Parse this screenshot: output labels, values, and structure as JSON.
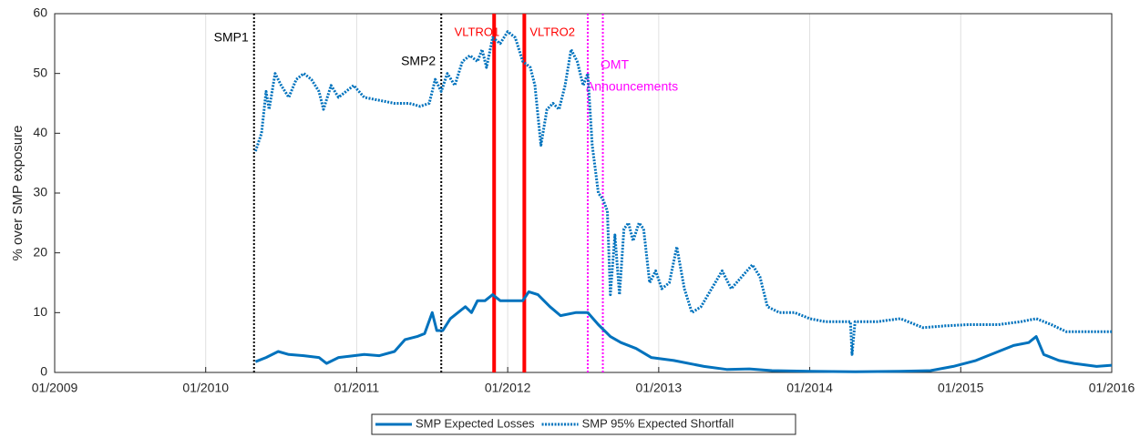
{
  "chart_data": {
    "type": "line",
    "ylabel": "% over SMP exposure",
    "xlim": [
      2009,
      2016
    ],
    "xticks": [
      {
        "value": 2009,
        "label": "01/2009"
      },
      {
        "value": 2010,
        "label": "01/2010"
      },
      {
        "value": 2011,
        "label": "01/2011"
      },
      {
        "value": 2012,
        "label": "01/2012"
      },
      {
        "value": 2013,
        "label": "01/2013"
      },
      {
        "value": 2014,
        "label": "01/2014"
      },
      {
        "value": 2015,
        "label": "01/2015"
      },
      {
        "value": 2016,
        "label": "01/2016"
      }
    ],
    "ylim": [
      0,
      60
    ],
    "yticks": [
      0,
      10,
      20,
      30,
      40,
      50,
      60
    ],
    "grid": true,
    "series": [
      {
        "name": "SMP Expected Losses",
        "color": "#0072bd",
        "style": "solid",
        "x": [
          2010.33,
          2010.4,
          2010.48,
          2010.55,
          2010.65,
          2010.75,
          2010.8,
          2010.88,
          2010.95,
          2011.05,
          2011.15,
          2011.25,
          2011.32,
          2011.4,
          2011.45,
          2011.5,
          2011.53,
          2011.57,
          2011.62,
          2011.67,
          2011.72,
          2011.76,
          2011.8,
          2011.85,
          2011.9,
          2011.95,
          2012.0,
          2012.05,
          2012.1,
          2012.14,
          2012.2,
          2012.28,
          2012.35,
          2012.45,
          2012.53,
          2012.6,
          2012.68,
          2012.75,
          2012.85,
          2012.95,
          2013.1,
          2013.3,
          2013.45,
          2013.6,
          2013.75,
          2014.0,
          2014.3,
          2014.6,
          2014.8,
          2014.95,
          2015.1,
          2015.25,
          2015.35,
          2015.45,
          2015.5,
          2015.55,
          2015.65,
          2015.75,
          2015.9,
          2016.0
        ],
        "values": [
          1.8,
          2.5,
          3.5,
          3,
          2.8,
          2.5,
          1.5,
          2.5,
          2.7,
          3,
          2.8,
          3.5,
          5.5,
          6,
          6.5,
          10,
          7,
          7,
          9,
          10,
          11,
          10,
          12,
          12,
          13,
          12,
          12,
          12,
          12,
          13.5,
          13,
          11,
          9.5,
          10,
          10,
          8,
          6,
          5,
          4,
          2.5,
          2,
          1,
          0.5,
          0.6,
          0.3,
          0.2,
          0.1,
          0.2,
          0.3,
          1,
          2,
          3.5,
          4.5,
          5,
          6,
          3,
          2,
          1.5,
          1,
          1.2
        ]
      },
      {
        "name": "SMP 95% Expected Shortfall",
        "color": "#0072bd",
        "style": "dotted",
        "x": [
          2010.33,
          2010.37,
          2010.4,
          2010.42,
          2010.46,
          2010.5,
          2010.55,
          2010.6,
          2010.65,
          2010.7,
          2010.75,
          2010.78,
          2010.83,
          2010.88,
          2010.93,
          2010.98,
          2011.05,
          2011.15,
          2011.25,
          2011.35,
          2011.42,
          2011.48,
          2011.52,
          2011.56,
          2011.6,
          2011.65,
          2011.7,
          2011.75,
          2011.8,
          2011.83,
          2011.86,
          2011.9,
          2011.95,
          2012.0,
          2012.05,
          2012.1,
          2012.15,
          2012.18,
          2012.22,
          2012.26,
          2012.3,
          2012.34,
          2012.38,
          2012.42,
          2012.46,
          2012.5,
          2012.53,
          2012.56,
          2012.6,
          2012.63,
          2012.66,
          2012.68,
          2012.71,
          2012.74,
          2012.77,
          2012.8,
          2012.83,
          2012.87,
          2012.9,
          2012.94,
          2012.98,
          2013.02,
          2013.07,
          2013.12,
          2013.17,
          2013.22,
          2013.28,
          2013.35,
          2013.42,
          2013.48,
          2013.55,
          2013.62,
          2013.67,
          2013.72,
          2013.8,
          2013.9,
          2014.0,
          2014.1,
          2014.2,
          2014.27,
          2014.28,
          2014.3,
          2014.45,
          2014.6,
          2014.75,
          2014.9,
          2015.05,
          2015.25,
          2015.4,
          2015.5,
          2015.6,
          2015.7,
          2015.85,
          2016.0
        ],
        "values": [
          37,
          40,
          47,
          44,
          50,
          48,
          46,
          49,
          50,
          49,
          47,
          44,
          48,
          46,
          47,
          48,
          46,
          45.5,
          45,
          45,
          44.5,
          45,
          49,
          47,
          50,
          48,
          52,
          53,
          52,
          54,
          51,
          56,
          55,
          57,
          56,
          52,
          51,
          48,
          38,
          44,
          45,
          44,
          48,
          54,
          52,
          48,
          50,
          38,
          30,
          29,
          27,
          13,
          23,
          13,
          24,
          25,
          22,
          25,
          24,
          15,
          17,
          14,
          15,
          21,
          14,
          10,
          11,
          14,
          17,
          14,
          16,
          18,
          16,
          11,
          10,
          10,
          9,
          8.5,
          8.5,
          8.5,
          3,
          8.5,
          8.5,
          9,
          7.5,
          7.8,
          8,
          8,
          8.5,
          9,
          8,
          6.8,
          6.8,
          6.8
        ]
      }
    ],
    "events": [
      {
        "label": "SMP1",
        "x": 2010.32,
        "color": "#000000",
        "style": "dotted"
      },
      {
        "label": "SMP2",
        "x": 2011.56,
        "color": "#000000",
        "style": "dotted"
      },
      {
        "label": "VLTRO1",
        "x": 2011.91,
        "color": "#ff0000",
        "style": "solid"
      },
      {
        "label": "VLTRO2",
        "x": 2012.11,
        "color": "#ff0000",
        "style": "solid"
      },
      {
        "label": "OMT",
        "x": 2012.53,
        "color": "#ff00ff",
        "style": "dotted"
      },
      {
        "label": "Announcements",
        "x": 2012.63,
        "color": "#ff00ff",
        "style": "dotted"
      }
    ]
  }
}
